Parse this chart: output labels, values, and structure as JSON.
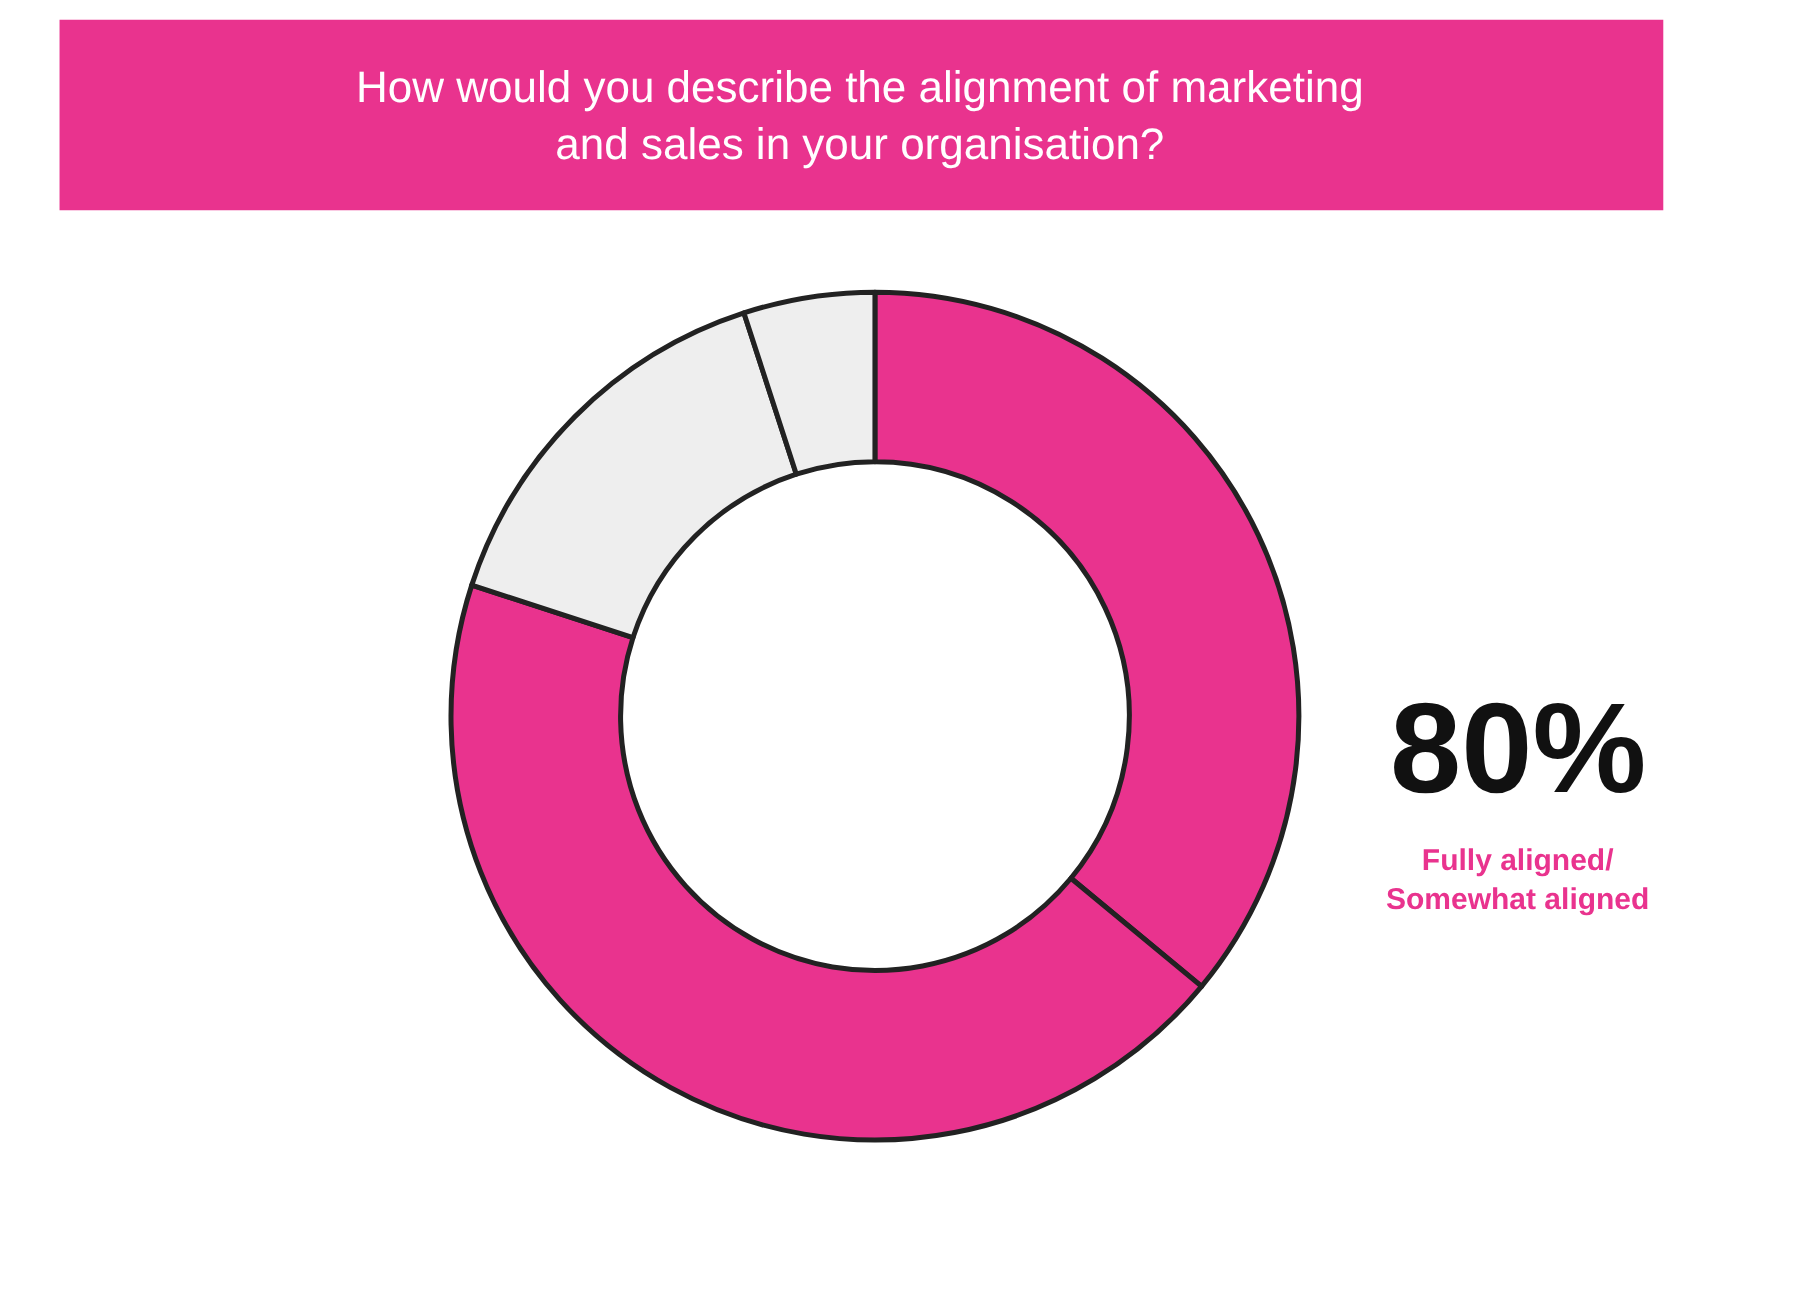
{
  "chart_data": {
    "type": "donut",
    "title": "How would you describe the alignment of marketing\nand sales in your organisation?",
    "categories": [
      null,
      null,
      null,
      null
    ],
    "values": [
      36,
      44,
      15,
      5
    ],
    "colors": [
      "#e9338e",
      "#e9338e",
      "#eeeeee",
      "#eeeeee"
    ],
    "annotations": [
      "80%",
      "Fully aligned/\nSomewhat aligned"
    ],
    "legend": false
  }
}
